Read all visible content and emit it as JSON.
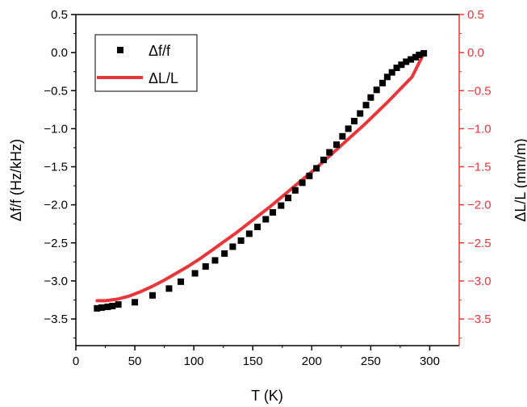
{
  "colors": {
    "left_axis": "#000000",
    "right_axis": "#e8363a",
    "df_series": "#000000",
    "dl_series": "#e8363a",
    "background": "#ffffff"
  },
  "chart_data": {
    "type": "scatter",
    "xlabel": "T (K)",
    "ylabel": "Δf/f (Hz/kHz)",
    "y2label": "ΔL/L (mm/m)",
    "xlim": [
      0,
      325
    ],
    "ylim": [
      -3.85,
      0.5
    ],
    "y2lim": [
      -3.85,
      0.5
    ],
    "xticks": [
      0,
      50,
      100,
      150,
      200,
      250,
      300
    ],
    "xtick_labels": [
      "0",
      "50",
      "100",
      "150",
      "200",
      "250",
      "300"
    ],
    "yticks": [
      0.5,
      0.0,
      -0.5,
      -1.0,
      -1.5,
      -2.0,
      -2.5,
      -3.0,
      -3.5
    ],
    "ytick_labels": [
      "0.5",
      "0.0",
      "−0.5",
      "−1.0",
      "−1.5",
      "−2.0",
      "−2.5",
      "−3.0",
      "−3.5"
    ],
    "y2tick_labels": [
      "0.5",
      "0.0",
      "−0.5",
      "−1.0",
      "−1.5",
      "−2.0",
      "−2.5",
      "−3.0",
      "−3.5"
    ],
    "legend_position": "top-left",
    "grid": false,
    "series": [
      {
        "name": "Δf/f",
        "kind": "scatter",
        "marker": "square",
        "axis": "left",
        "x": [
          18,
          22,
          27,
          31,
          36,
          50,
          65,
          79,
          89,
          101,
          110,
          118,
          126,
          133,
          140,
          147,
          154,
          161,
          167,
          174,
          180,
          186,
          192,
          198,
          204,
          210,
          215,
          221,
          226,
          231,
          236,
          241,
          246,
          250,
          255,
          260,
          264,
          268,
          272,
          276,
          280,
          284,
          288,
          291,
          295
        ],
        "y": [
          -3.36,
          -3.35,
          -3.34,
          -3.33,
          -3.31,
          -3.28,
          -3.19,
          -3.1,
          -3.01,
          -2.9,
          -2.81,
          -2.73,
          -2.64,
          -2.55,
          -2.47,
          -2.38,
          -2.29,
          -2.19,
          -2.1,
          -2.01,
          -1.91,
          -1.81,
          -1.71,
          -1.62,
          -1.52,
          -1.41,
          -1.31,
          -1.21,
          -1.1,
          -1.0,
          -0.9,
          -0.8,
          -0.69,
          -0.59,
          -0.49,
          -0.4,
          -0.32,
          -0.26,
          -0.2,
          -0.16,
          -0.12,
          -0.09,
          -0.06,
          -0.03,
          -0.01
        ]
      },
      {
        "name": "ΔL/L",
        "kind": "line",
        "axis": "right",
        "x": [
          18,
          25,
          35,
          45,
          55,
          65,
          75,
          85,
          95,
          105,
          115,
          125,
          135,
          145,
          155,
          165,
          175,
          185,
          195,
          205,
          215,
          225,
          235,
          245,
          255,
          265,
          275,
          285,
          295
        ],
        "y": [
          -3.26,
          -3.26,
          -3.24,
          -3.2,
          -3.14,
          -3.07,
          -2.99,
          -2.9,
          -2.81,
          -2.71,
          -2.6,
          -2.49,
          -2.38,
          -2.26,
          -2.14,
          -2.02,
          -1.89,
          -1.76,
          -1.63,
          -1.5,
          -1.36,
          -1.22,
          -1.08,
          -0.94,
          -0.79,
          -0.64,
          -0.48,
          -0.32,
          -0.01
        ]
      }
    ]
  }
}
